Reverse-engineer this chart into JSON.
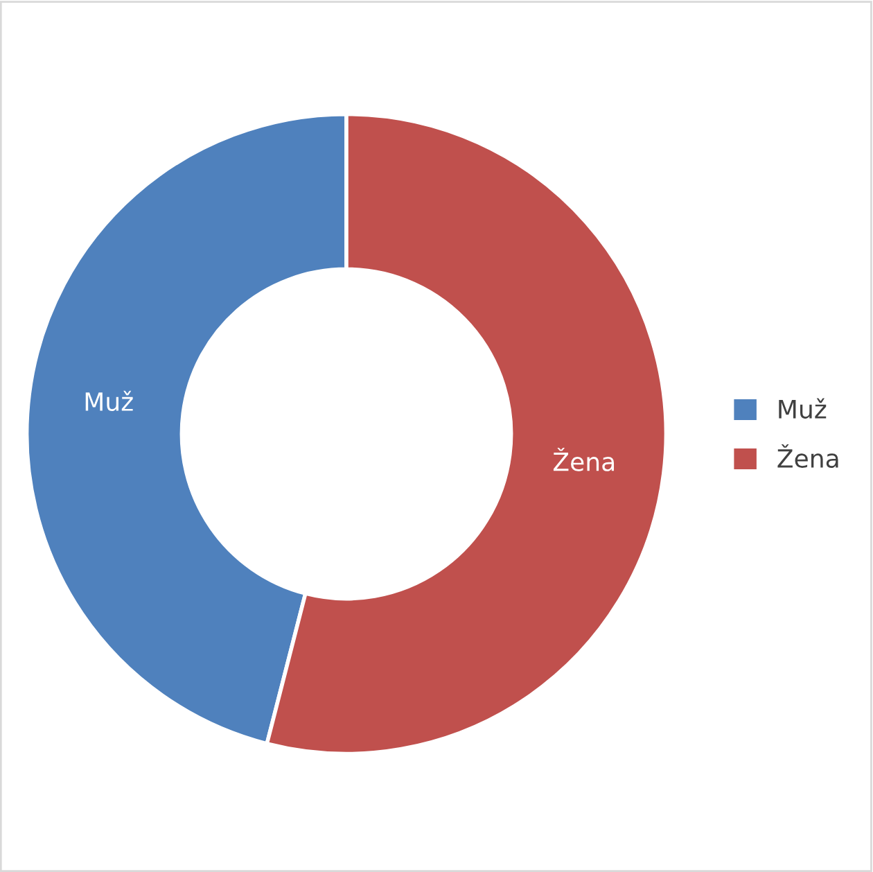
{
  "chart_data": {
    "type": "donut",
    "categories": [
      "Muž",
      "Žena"
    ],
    "values": [
      46,
      54
    ],
    "colors": [
      "#4f81bd",
      "#c0504d"
    ],
    "legend": "right"
  }
}
